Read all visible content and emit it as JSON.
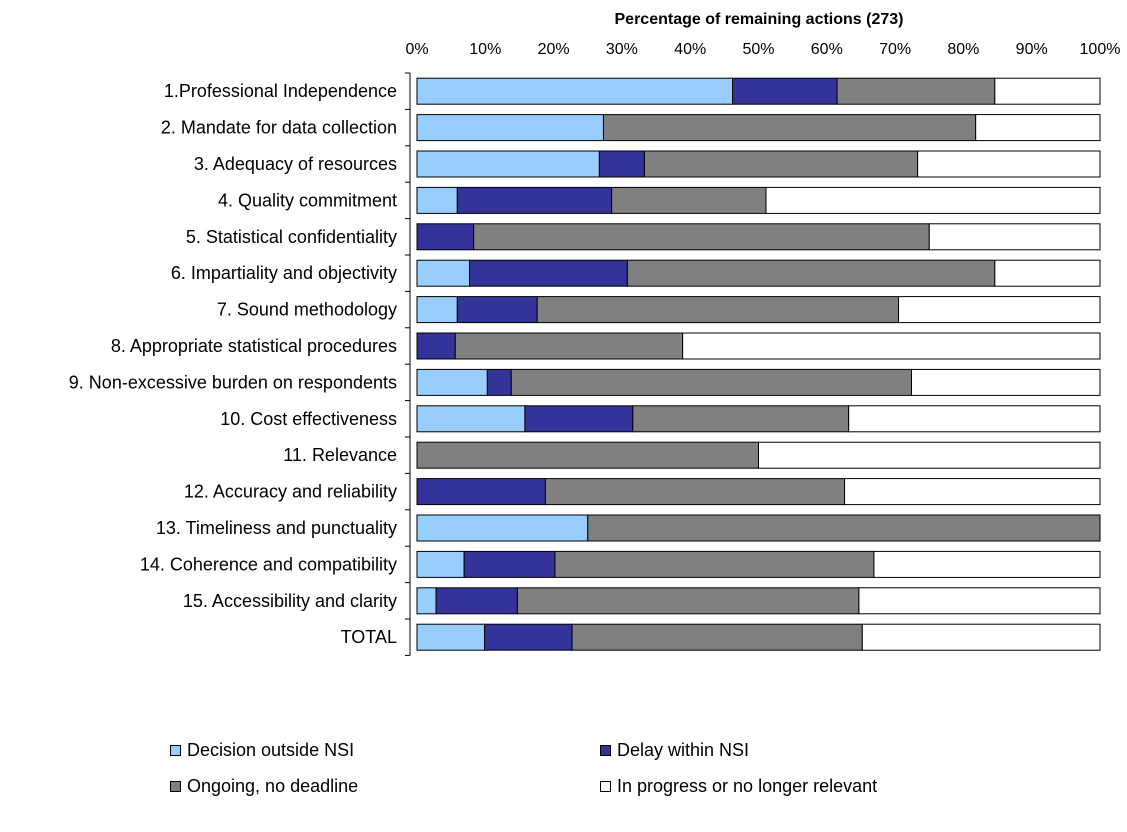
{
  "chart_data": {
    "type": "bar",
    "orientation": "horizontal",
    "stacked": true,
    "percent": true,
    "title": "Percentage of remaining actions (273)",
    "xlabel": "",
    "ylabel": "",
    "xlim": [
      0,
      100
    ],
    "x_ticks": [
      "0%",
      "10%",
      "20%",
      "30%",
      "40%",
      "50%",
      "60%",
      "70%",
      "80%",
      "90%",
      "100%"
    ],
    "grid": false,
    "legend_position": "bottom",
    "categories": [
      "1.Professional Independence",
      "2. Mandate for data collection",
      "3. Adequacy of resources",
      "4. Quality commitment",
      "5. Statistical confidentiality",
      "6. Impartiality and objectivity",
      "7. Sound methodology",
      "8. Appropriate statistical  procedures",
      "9. Non-excessive burden on respondents",
      "10. Cost effectiveness",
      "11. Relevance",
      "12. Accuracy and reliability",
      "13. Timeliness and punctuality",
      "14. Coherence and compatibility",
      "15. Accessibility and clarity",
      "TOTAL"
    ],
    "series": [
      {
        "name": "Decision outside NSI",
        "color": "#99ccff",
        "values": [
          46.2,
          27.3,
          26.7,
          5.9,
          0,
          7.7,
          5.9,
          0,
          10.3,
          15.8,
          0,
          0,
          25.0,
          6.9,
          2.8,
          9.9
        ]
      },
      {
        "name": "Delay within NSI",
        "color": "#333399",
        "values": [
          15.3,
          0,
          6.6,
          22.6,
          8.3,
          23.1,
          11.7,
          5.6,
          3.5,
          15.8,
          0,
          18.8,
          0,
          13.3,
          11.9,
          12.8
        ]
      },
      {
        "name": "Ongoing, no deadline",
        "color": "#808080",
        "values": [
          23.1,
          54.5,
          40.0,
          22.6,
          66.7,
          53.8,
          52.9,
          33.3,
          58.6,
          31.6,
          50.0,
          43.8,
          75.0,
          46.7,
          50.0,
          42.5
        ]
      },
      {
        "name": "In progress or no longer relevant",
        "color": "#ffffff",
        "values": [
          15.4,
          18.2,
          26.7,
          48.9,
          25.0,
          15.4,
          29.5,
          61.1,
          27.6,
          36.8,
          50.0,
          37.4,
          0,
          33.1,
          35.3,
          34.8
        ]
      }
    ]
  }
}
